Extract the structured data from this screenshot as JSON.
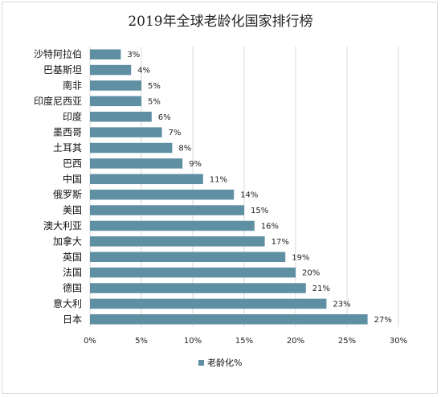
{
  "chart_data": {
    "type": "bar",
    "orientation": "horizontal",
    "title": "2019年全球老龄化国家排行榜",
    "categories": [
      "沙特阿拉伯",
      "巴基斯坦",
      "南非",
      "印度尼西亚",
      "印度",
      "墨西哥",
      "土耳其",
      "巴西",
      "中国",
      "俄罗斯",
      "美国",
      "澳大利亚",
      "加拿大",
      "英国",
      "法国",
      "德国",
      "意大利",
      "日本"
    ],
    "values": [
      3,
      4,
      5,
      5,
      6,
      7,
      8,
      9,
      11,
      14,
      15,
      16,
      17,
      19,
      20,
      21,
      23,
      27
    ],
    "value_labels": [
      "3%",
      "4%",
      "5%",
      "5%",
      "6%",
      "7%",
      "8%",
      "9%",
      "11%",
      "14%",
      "15%",
      "16%",
      "17%",
      "19%",
      "20%",
      "21%",
      "23%",
      "27%"
    ],
    "xlim": [
      0,
      30
    ],
    "xticks": [
      0,
      5,
      10,
      15,
      20,
      25,
      30
    ],
    "xtick_labels": [
      "0%",
      "5%",
      "10%",
      "15%",
      "20%",
      "25%",
      "30%"
    ],
    "grid": "vertical",
    "legend": {
      "position": "bottom",
      "label": "老龄化%"
    },
    "colors": {
      "bar": "#5f8fa3",
      "grid": "#d9d9d9"
    }
  }
}
